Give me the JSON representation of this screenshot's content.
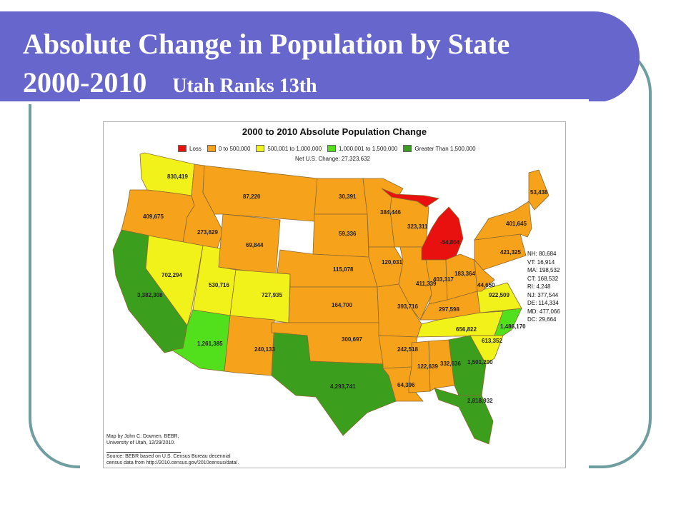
{
  "slide": {
    "title_line1": "Absolute Change in Population by State",
    "title_year": "2000-2010",
    "title_sub": "Utah Ranks 13th"
  },
  "map": {
    "title": "2000 to 2010 Absolute Population Change",
    "legend": [
      {
        "label": "Loss",
        "color": "#e8110f"
      },
      {
        "label": "0 to 500,000",
        "color": "#f7a21b"
      },
      {
        "label": "500,001 to 1,000,000",
        "color": "#f2f21b"
      },
      {
        "label": "1,000,001 to 1,500,000",
        "color": "#53e01c"
      },
      {
        "label": "Greater Than 1,500,000",
        "color": "#3c9e1d"
      }
    ],
    "net_change": "Net U.S. Change: 27,323,632",
    "credit_line1": "Map by John C. Downen, BEBR,",
    "credit_line2": "University of Utah, 12/29/2010.",
    "source_line1": "Source: BEBR based on U.S. Census Bureau decennial",
    "source_line2": "census data from http://2010.census.gov/2010census/data/.",
    "small_states": [
      "NH: 80,684",
      "VT: 16,914",
      "MA: 198,532",
      "CT: 168,532",
      "RI: 4,248",
      "NJ: 377,544",
      "DE: 114,334",
      "MD: 477,066",
      "DC: 29,664"
    ],
    "states": [
      {
        "name": "WA",
        "value": "830,419",
        "color": "#f2f21b"
      },
      {
        "name": "OR",
        "value": "409,675",
        "color": "#f7a21b"
      },
      {
        "name": "CA",
        "value": "3,382,308",
        "color": "#3c9e1d"
      },
      {
        "name": "ID",
        "value": "273,629",
        "color": "#f7a21b"
      },
      {
        "name": "NV",
        "value": "702,294",
        "color": "#f2f21b"
      },
      {
        "name": "MT",
        "value": "87,220",
        "color": "#f7a21b"
      },
      {
        "name": "WY",
        "value": "69,844",
        "color": "#f7a21b"
      },
      {
        "name": "UT",
        "value": "530,716",
        "color": "#f2f21b"
      },
      {
        "name": "AZ",
        "value": "1,261,385",
        "color": "#53e01c"
      },
      {
        "name": "CO",
        "value": "727,935",
        "color": "#f2f21b"
      },
      {
        "name": "NM",
        "value": "240,133",
        "color": "#f7a21b"
      },
      {
        "name": "ND",
        "value": "30,391",
        "color": "#f7a21b"
      },
      {
        "name": "SD",
        "value": "59,336",
        "color": "#f7a21b"
      },
      {
        "name": "NE",
        "value": "115,078",
        "color": "#f7a21b"
      },
      {
        "name": "KS",
        "value": "164,700",
        "color": "#f7a21b"
      },
      {
        "name": "OK",
        "value": "300,697",
        "color": "#f7a21b"
      },
      {
        "name": "TX",
        "value": "4,293,741",
        "color": "#3c9e1d"
      },
      {
        "name": "MN",
        "value": "384,446",
        "color": "#f7a21b"
      },
      {
        "name": "IA",
        "value": "120,031",
        "color": "#f7a21b"
      },
      {
        "name": "MO",
        "value": "393,716",
        "color": "#f7a21b"
      },
      {
        "name": "AR",
        "value": "242,518",
        "color": "#f7a21b"
      },
      {
        "name": "LA",
        "value": "64,396",
        "color": "#f7a21b"
      },
      {
        "name": "WI",
        "value": "323,311",
        "color": "#f7a21b"
      },
      {
        "name": "IL",
        "value": "411,339",
        "color": "#f7a21b"
      },
      {
        "name": "MI",
        "value": "-54,804",
        "color": "#e8110f"
      },
      {
        "name": "IN",
        "value": "403,317",
        "color": "#f7a21b"
      },
      {
        "name": "OH",
        "value": "183,364",
        "color": "#f7a21b"
      },
      {
        "name": "KY",
        "value": "297,598",
        "color": "#f7a21b"
      },
      {
        "name": "TN",
        "value": "656,822",
        "color": "#f2f21b"
      },
      {
        "name": "MS",
        "value": "122,639",
        "color": "#f7a21b"
      },
      {
        "name": "AL",
        "value": "332,636",
        "color": "#f7a21b"
      },
      {
        "name": "GA",
        "value": "1,501,200",
        "color": "#3c9e1d"
      },
      {
        "name": "FL",
        "value": "2,818,932",
        "color": "#3c9e1d"
      },
      {
        "name": "SC",
        "value": "613,352",
        "color": "#f2f21b"
      },
      {
        "name": "NC",
        "value": "1,486,170",
        "color": "#53e01c"
      },
      {
        "name": "VA",
        "value": "922,509",
        "color": "#f2f21b"
      },
      {
        "name": "WV",
        "value": "44,650",
        "color": "#f7a21b"
      },
      {
        "name": "PA",
        "value": "421,325",
        "color": "#f7a21b"
      },
      {
        "name": "NY",
        "value": "401,645",
        "color": "#f7a21b"
      },
      {
        "name": "ME",
        "value": "53,438",
        "color": "#f7a21b"
      }
    ]
  }
}
